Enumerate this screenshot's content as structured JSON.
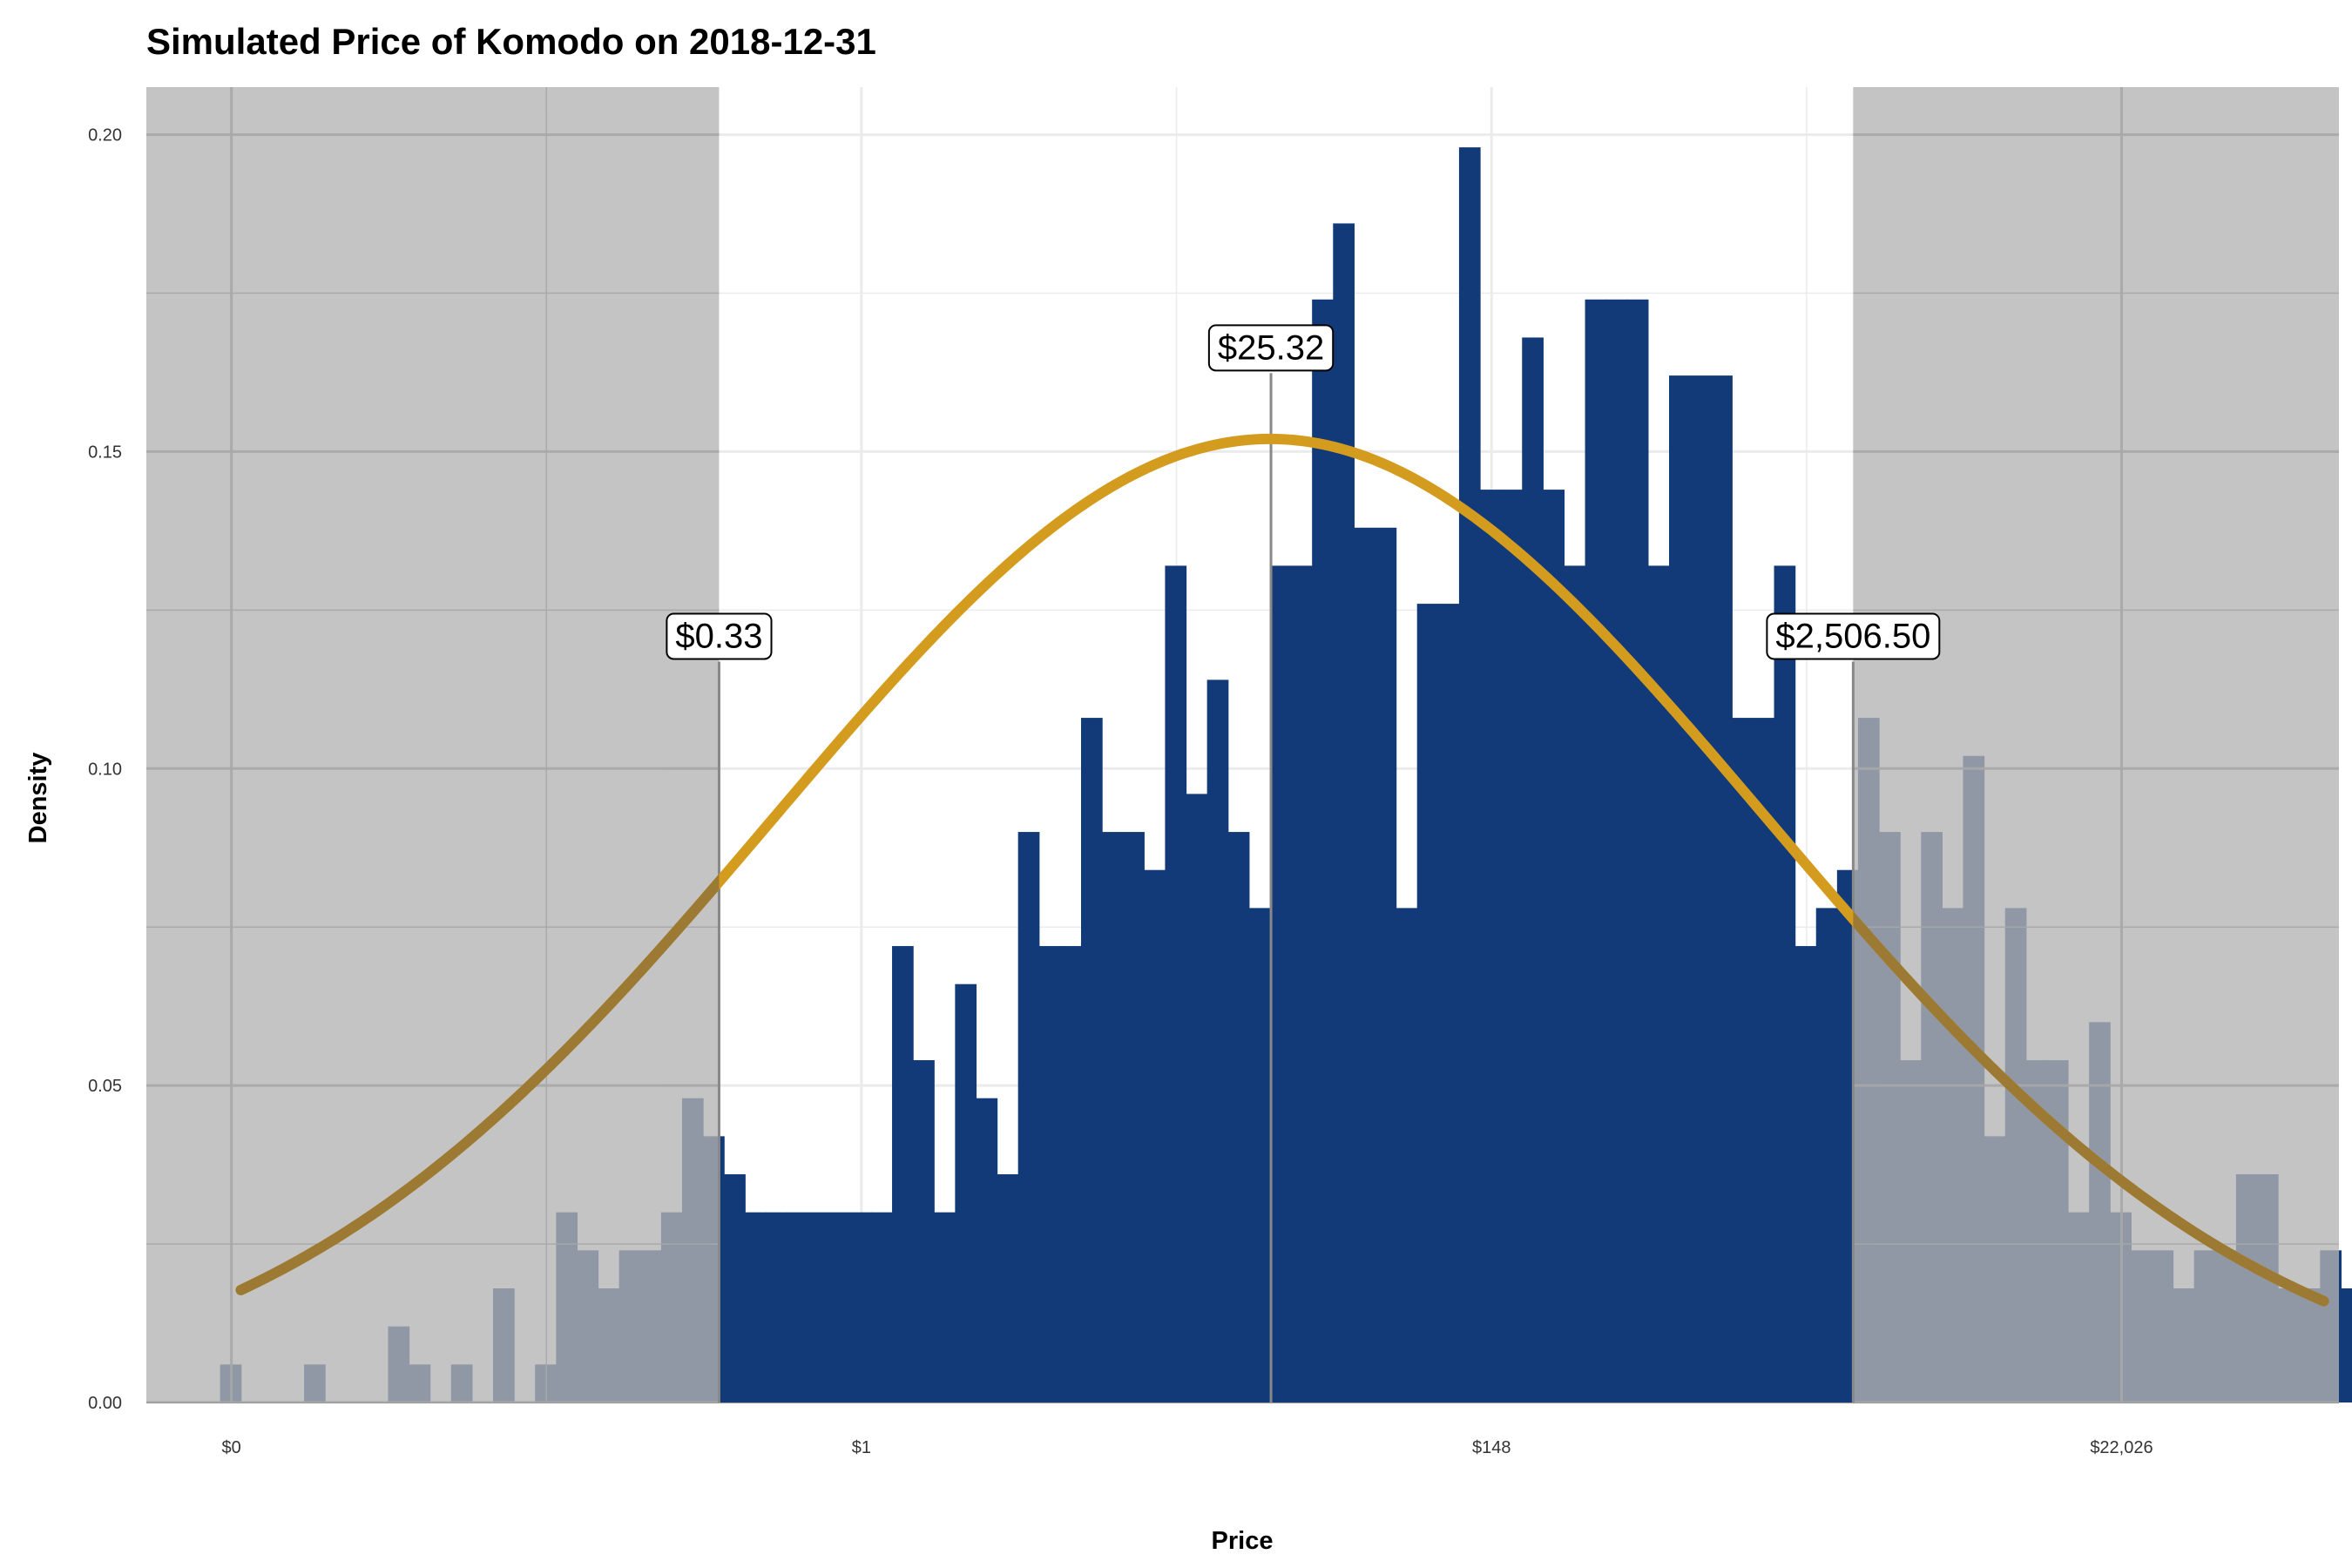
{
  "chart_data": {
    "type": "histogram",
    "title": "Simulated Price of Komodo on 2018-12-31",
    "xlabel": "Price",
    "ylabel": "Density",
    "x_scale": "log",
    "xlim_ln": [
      -0.45,
      11.15
    ],
    "ylim": [
      0,
      0.2075
    ],
    "x_ticks": [
      {
        "ln": 0,
        "label": "$0"
      },
      {
        "ln": 3.333,
        "label": "$1"
      },
      {
        "ln": 6.667,
        "label": "$148"
      },
      {
        "ln": 10.0,
        "label": "$22,026"
      }
    ],
    "y_ticks": [
      {
        "value": 0.0,
        "label": "0.00"
      },
      {
        "value": 0.05,
        "label": "0.05"
      },
      {
        "value": 0.1,
        "label": "0.10"
      },
      {
        "value": 0.15,
        "label": "0.15"
      },
      {
        "value": 0.2,
        "label": "0.20"
      }
    ],
    "grid": true,
    "bin_start_ln": -0.06,
    "bin_width_ln": 0.1111,
    "histogram_densities": [
      0.006,
      0.0,
      0.0,
      0.0,
      0.006,
      0.0,
      0.0,
      0.0,
      0.012,
      0.006,
      0.0,
      0.006,
      0.0,
      0.018,
      0.0,
      0.006,
      0.03,
      0.024,
      0.018,
      0.024,
      0.024,
      0.03,
      0.048,
      0.042,
      0.036,
      0.03,
      0.03,
      0.03,
      0.03,
      0.03,
      0.03,
      0.03,
      0.072,
      0.054,
      0.03,
      0.066,
      0.048,
      0.036,
      0.09,
      0.072,
      0.072,
      0.108,
      0.09,
      0.09,
      0.084,
      0.132,
      0.096,
      0.114,
      0.09,
      0.078,
      0.132,
      0.132,
      0.174,
      0.186,
      0.138,
      0.138,
      0.078,
      0.126,
      0.126,
      0.198,
      0.144,
      0.144,
      0.168,
      0.144,
      0.132,
      0.174,
      0.174,
      0.174,
      0.132,
      0.162,
      0.162,
      0.162,
      0.108,
      0.108,
      0.132,
      0.072,
      0.078,
      0.084,
      0.108,
      0.09,
      0.054,
      0.09,
      0.078,
      0.102,
      0.042,
      0.078,
      0.054,
      0.054,
      0.03,
      0.06,
      0.03,
      0.024,
      0.024,
      0.018,
      0.024,
      0.024,
      0.036,
      0.036,
      0.018,
      0.018,
      0.024,
      0.018,
      0.018,
      0.018,
      0.024,
      0.024,
      0.006,
      0.006,
      0.0,
      0.006,
      0.0,
      0.0,
      0.0,
      0.0,
      0.0,
      0.0,
      0.0,
      0.0,
      0.0,
      0.0,
      0.0,
      0.018,
      0.024,
      0.006,
      0.006,
      0.006,
      0.0,
      0.0,
      0.0,
      0.0,
      0.0,
      0.0,
      0.0,
      0.0,
      0.0,
      0.0,
      0.0,
      0.0,
      0.006
    ],
    "density_curve": {
      "mean_ln": 5.495,
      "sd_ln": 2.627,
      "peak_density": 0.152,
      "x_range_ln": [
        0.05,
        11.07
      ]
    },
    "shaded_regions_ln": [
      [
        -0.45,
        2.58
      ],
      [
        8.58,
        11.15
      ]
    ],
    "annotations": [
      {
        "label": "$0.33",
        "x_ln": 2.58,
        "y": 0.121
      },
      {
        "label": "$25.32",
        "x_ln": 5.5,
        "y": 0.1665
      },
      {
        "label": "$2,506.50",
        "x_ln": 8.58,
        "y": 0.121
      }
    ],
    "colors": {
      "bars": "#123a78",
      "bars_in_shade": "#243e6a",
      "curve": "#d49c1e",
      "curve_in_shade": "#9c7a34",
      "shade": "#b3b3b3",
      "grid": "#ebebeb",
      "grid_in_shade": "#a8a8a8",
      "ref_line": "#888888"
    }
  }
}
